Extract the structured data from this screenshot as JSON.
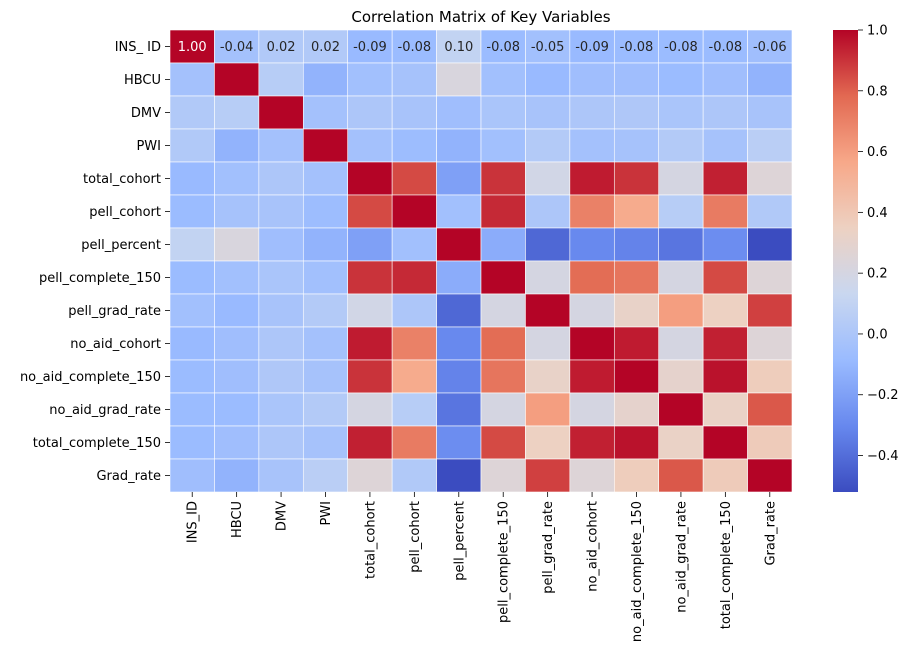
{
  "chart_data": {
    "type": "heatmap",
    "title": "Correlation Matrix of Key Variables",
    "xlabel": "",
    "ylabel": "",
    "colormap": "coolwarm",
    "colormap_stops": [
      "#3b4cc0",
      "#6788ee",
      "#9abbff",
      "#c9d7f0",
      "#edd1c2",
      "#f7a889",
      "#e26952",
      "#b40426"
    ],
    "color_range": [
      -0.52,
      1.0
    ],
    "colorbar_ticks": [
      {
        "value": 1.0,
        "label": "1.0"
      },
      {
        "value": 0.8,
        "label": "0.8"
      },
      {
        "value": 0.6,
        "label": "0.6"
      },
      {
        "value": 0.4,
        "label": "0.4"
      },
      {
        "value": 0.2,
        "label": "0.2"
      },
      {
        "value": 0.0,
        "label": "0.0"
      },
      {
        "value": -0.2,
        "label": "−0.2"
      },
      {
        "value": -0.4,
        "label": "−0.4"
      }
    ],
    "row_labels": [
      "INS_ ID",
      "HBCU",
      "DMV",
      "PWI",
      "total_cohort",
      "pell_cohort",
      "pell_percent",
      "pell_complete_150",
      "pell_grad_rate",
      "no_aid_cohort",
      "no_aid_complete_150",
      "no_aid_grad_rate",
      "total_complete_150",
      "Grad_rate"
    ],
    "col_labels": [
      "INS_ID",
      "HBCU",
      "DMV",
      "PWI",
      "total_cohort",
      "pell_cohort",
      "pell_percent",
      "pell_complete_150",
      "pell_grad_rate",
      "no_aid_cohort",
      "no_aid_complete_150",
      "no_aid_grad_rate",
      "total_complete_150",
      "Grad_rate"
    ],
    "annotations": {
      "row": 0,
      "labels": [
        "1.00",
        "-0.04",
        "0.02",
        "0.02",
        "-0.09",
        "-0.08",
        "0.10",
        "-0.08",
        "-0.05",
        "-0.09",
        "-0.08",
        "-0.08",
        "-0.08",
        "-0.06"
      ]
    },
    "matrix": [
      [
        1.0,
        -0.04,
        0.02,
        0.02,
        -0.09,
        -0.08,
        0.1,
        -0.08,
        -0.05,
        -0.09,
        -0.08,
        -0.08,
        -0.08,
        -0.06
      ],
      [
        -0.04,
        1.0,
        0.05,
        -0.12,
        -0.05,
        -0.03,
        0.22,
        -0.05,
        -0.09,
        -0.06,
        -0.06,
        -0.08,
        -0.06,
        -0.12
      ],
      [
        0.02,
        0.05,
        1.0,
        -0.04,
        0.0,
        -0.02,
        -0.06,
        -0.01,
        -0.02,
        0.0,
        0.01,
        -0.01,
        0.0,
        -0.02
      ],
      [
        0.02,
        -0.12,
        -0.04,
        1.0,
        -0.04,
        -0.07,
        -0.12,
        -0.05,
        0.03,
        -0.04,
        -0.03,
        0.03,
        -0.03,
        0.06
      ],
      [
        -0.09,
        -0.05,
        0.0,
        -0.04,
        1.0,
        0.85,
        -0.2,
        0.9,
        0.18,
        0.95,
        0.9,
        0.2,
        0.94,
        0.25
      ],
      [
        -0.08,
        -0.03,
        -0.02,
        -0.07,
        0.85,
        1.0,
        -0.05,
        0.92,
        0.0,
        0.7,
        0.55,
        0.05,
        0.72,
        0.02
      ],
      [
        0.1,
        0.22,
        -0.06,
        -0.12,
        -0.2,
        -0.05,
        1.0,
        -0.15,
        -0.42,
        -0.3,
        -0.32,
        -0.37,
        -0.28,
        -0.52
      ],
      [
        -0.08,
        -0.05,
        -0.01,
        -0.05,
        0.9,
        0.92,
        -0.15,
        1.0,
        0.2,
        0.77,
        0.74,
        0.2,
        0.85,
        0.25
      ],
      [
        -0.05,
        -0.09,
        -0.02,
        0.03,
        0.18,
        0.0,
        -0.42,
        0.2,
        1.0,
        0.2,
        0.32,
        0.6,
        0.35,
        0.87
      ],
      [
        -0.09,
        -0.06,
        0.0,
        -0.04,
        0.95,
        0.7,
        -0.3,
        0.77,
        0.2,
        1.0,
        0.95,
        0.2,
        0.94,
        0.25
      ],
      [
        -0.08,
        -0.06,
        0.01,
        -0.03,
        0.9,
        0.55,
        -0.32,
        0.74,
        0.32,
        0.95,
        1.0,
        0.3,
        0.97,
        0.37
      ],
      [
        -0.08,
        -0.08,
        -0.01,
        0.03,
        0.2,
        0.05,
        -0.37,
        0.2,
        0.6,
        0.2,
        0.3,
        1.0,
        0.33,
        0.82
      ],
      [
        -0.08,
        -0.06,
        0.0,
        -0.03,
        0.94,
        0.72,
        -0.28,
        0.85,
        0.35,
        0.94,
        0.97,
        0.33,
        1.0,
        0.38
      ],
      [
        -0.06,
        -0.12,
        -0.02,
        0.06,
        0.25,
        0.02,
        -0.52,
        0.25,
        0.87,
        0.25,
        0.37,
        0.82,
        0.38,
        1.0
      ]
    ]
  }
}
